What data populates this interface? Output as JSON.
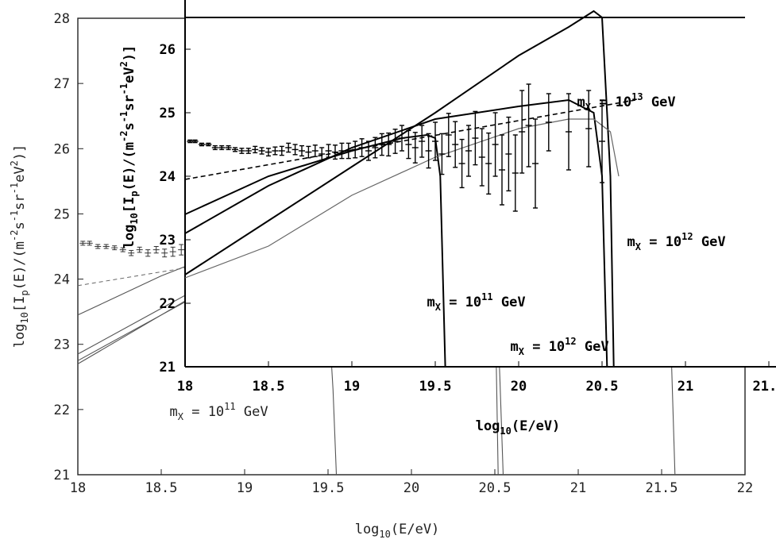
{
  "chart_data": [
    {
      "name": "outer",
      "type": "line",
      "xlabel_main": "log",
      "xlabel_sub": "10",
      "xlabel_rest": "(E/eV)",
      "ylabel_parts": {
        "a": "log",
        "a_sub": "10",
        "b": "[I",
        "b_sub": "p",
        "c": "(E)/(m",
        "c_sup": "-2",
        "d": "s",
        "d_sup": "-1",
        "e": "sr",
        "e_sup": "-1",
        "f": "eV",
        "f_sup": "2",
        "g": ")]"
      },
      "xlim": [
        18,
        22
      ],
      "ylim": [
        21,
        28
      ],
      "xticks": [
        "18",
        "18.5",
        "19",
        "19.5",
        "20",
        "20.5",
        "21",
        "21.5",
        "22"
      ],
      "yticks": [
        "21",
        "22",
        "23",
        "24",
        "25",
        "26",
        "27",
        "28"
      ],
      "annotations": [
        {
          "text": "m",
          "sub": "X",
          "rest": " = 10",
          "sup": "11",
          "unit": " GeV",
          "x": 18.55,
          "y": 21.9
        },
        {
          "text": "m",
          "sub": "X",
          "rest": " = 10",
          "sup": "12",
          "unit": " GeV",
          "x": 20.55,
          "y": 23.0
        }
      ],
      "series": [
        {
          "name": "m_X = 10^11 GeV model",
          "x": [
            18.0,
            18.5,
            19.0,
            19.2,
            19.35,
            19.45,
            19.5,
            19.53,
            19.55
          ],
          "y": [
            22.75,
            23.45,
            24.15,
            24.42,
            24.48,
            24.3,
            23.6,
            22.3,
            21.0
          ]
        },
        {
          "name": "m_X = 10^12 GeV model",
          "x": [
            18.0,
            18.5,
            19.0,
            19.5,
            19.8,
            20.1,
            20.3,
            20.42,
            20.5,
            20.53,
            20.55
          ],
          "y": [
            22.7,
            23.45,
            24.2,
            24.9,
            25.3,
            25.55,
            25.6,
            25.4,
            24.5,
            22.5,
            21.0
          ]
        },
        {
          "name": "m_X = 10^12 GeV model (b)",
          "x": [
            18.0,
            18.5,
            19.0,
            19.5,
            20.0,
            20.3,
            20.45,
            20.5,
            20.52
          ],
          "y": [
            22.85,
            23.55,
            24.25,
            24.95,
            25.6,
            25.7,
            25.6,
            24.0,
            21.0
          ]
        },
        {
          "name": "m_X = 10^13 GeV model",
          "x": [
            18.0,
            18.5,
            19.0,
            19.5,
            20.0,
            20.5,
            21.0,
            21.3,
            21.48,
            21.55,
            21.58
          ],
          "y": [
            23.45,
            24.05,
            24.55,
            25.05,
            25.55,
            25.9,
            26.1,
            26.05,
            25.5,
            23.5,
            21.0
          ]
        },
        {
          "name": "power-law fit",
          "x": [
            18.0,
            21.2
          ],
          "y": [
            23.9,
            25.25
          ]
        }
      ],
      "data_points": {
        "x": [
          18.03,
          18.07,
          18.12,
          18.17,
          18.22,
          18.27,
          18.32,
          18.37,
          18.42,
          18.47,
          18.52,
          18.57,
          18.62,
          18.67,
          18.72,
          18.77,
          18.82,
          18.87,
          18.92,
          18.97,
          19.02,
          19.07,
          19.12,
          19.17,
          19.22,
          19.27,
          19.32,
          19.37,
          19.42,
          19.47,
          19.52,
          19.57,
          19.62,
          19.67,
          19.72,
          19.77,
          19.82,
          19.87,
          19.92,
          19.97,
          20.02,
          20.1
        ],
        "y": [
          24.55,
          24.55,
          24.5,
          24.5,
          24.48,
          24.45,
          24.4,
          24.45,
          24.4,
          24.45,
          24.4,
          24.42,
          24.45,
          24.4,
          24.3,
          24.28,
          24.3,
          24.35,
          24.3,
          24.4,
          24.35,
          24.45,
          24.5,
          24.5,
          24.55,
          24.55,
          24.4,
          24.45,
          24.65,
          24.6,
          24.8,
          24.9,
          25.2,
          24.3,
          24.4,
          24.65,
          24.5,
          24.8,
          24.95,
          24.8,
          24.2,
          24.2
        ],
        "err": [
          0.03,
          0.03,
          0.03,
          0.03,
          0.03,
          0.03,
          0.04,
          0.04,
          0.05,
          0.05,
          0.06,
          0.07,
          0.08,
          0.09,
          0.09,
          0.1,
          0.12,
          0.13,
          0.14,
          0.15,
          0.16,
          0.18,
          0.2,
          0.22,
          0.25,
          0.28,
          0.3,
          0.32,
          0.35,
          0.38,
          0.4,
          0.42,
          0.45,
          0.5,
          0.55,
          0.6,
          0.65,
          0.7,
          0.75,
          0.8,
          0.9,
          0.5
        ]
      }
    },
    {
      "name": "inset",
      "type": "line",
      "xlabel_main": "log",
      "xlabel_sub": "10",
      "xlabel_rest": "(E/eV)",
      "ylabel_parts": {
        "a": "log",
        "a_sub": "10",
        "b": "[I",
        "b_sub": "p",
        "c": "(E)/(m",
        "c_sup": "-2",
        "d": "s",
        "d_sup": "-1",
        "e": "sr",
        "e_sup": "-1",
        "f": "eV",
        "f_sup": "2",
        "g": ")]"
      },
      "xlim": [
        18,
        21.5
      ],
      "ylim": [
        21,
        26.5
      ],
      "xticks": [
        "18",
        "18.5",
        "19",
        "19.5",
        "20",
        "20.5",
        "21",
        "21.5"
      ],
      "yticks": [
        "21",
        "22",
        "23",
        "24",
        "25",
        "26"
      ],
      "annotations": [
        {
          "text": "m",
          "sub": "X",
          "rest": " = 10",
          "sup": "11",
          "unit": " GeV",
          "x": 19.45,
          "y": 21.95
        },
        {
          "text": "m",
          "sub": "X",
          "rest": " = 10",
          "sup": "12",
          "unit": " GeV",
          "x": 20.65,
          "y": 22.9
        },
        {
          "text": "m",
          "sub": "X",
          "rest": " = 10",
          "sup": "12",
          "unit": " GeV",
          "x": 19.95,
          "y": 21.25
        },
        {
          "text": "m",
          "sub": "X",
          "rest": " = 10",
          "sup": "13",
          "unit": " GeV",
          "x": 20.35,
          "y": 25.1
        }
      ],
      "series": [
        {
          "name": "m_X = 10^11 GeV",
          "x": [
            18.0,
            18.5,
            19.0,
            19.3,
            19.45,
            19.5,
            19.53,
            19.55,
            19.56
          ],
          "y": [
            23.4,
            24.0,
            24.4,
            24.6,
            24.65,
            24.6,
            24.0,
            22.0,
            21.0
          ]
        },
        {
          "name": "m_X = 10^12 GeV",
          "x": [
            18.0,
            18.5,
            19.0,
            19.5,
            20.0,
            20.3,
            20.45,
            20.5,
            20.52,
            20.53
          ],
          "y": [
            23.1,
            23.85,
            24.45,
            24.9,
            25.1,
            25.2,
            25.0,
            24.0,
            22.0,
            21.0
          ]
        },
        {
          "name": "m_X = 10^12 GeV (b)",
          "x": [
            18.0,
            18.5,
            19.0,
            19.5,
            20.0,
            20.3,
            20.45,
            20.5,
            20.55,
            20.57
          ],
          "y": [
            22.45,
            23.3,
            24.15,
            25.0,
            25.9,
            26.35,
            26.6,
            26.5,
            24.0,
            21.0
          ]
        },
        {
          "name": "m_X = 10^13 GeV (gray)",
          "x": [
            18.0,
            18.5,
            19.0,
            19.5,
            20.0,
            20.3,
            20.45,
            20.55,
            20.6
          ],
          "y": [
            22.4,
            22.9,
            23.7,
            24.3,
            24.75,
            24.9,
            24.9,
            24.7,
            24.0
          ]
        },
        {
          "name": "power-law fit",
          "x": [
            18.0,
            20.7
          ],
          "y": [
            23.95,
            25.2
          ]
        }
      ],
      "data_points": {
        "x": [
          18.03,
          18.06,
          18.1,
          18.14,
          18.18,
          18.22,
          18.26,
          18.3,
          18.34,
          18.38,
          18.42,
          18.46,
          18.5,
          18.54,
          18.58,
          18.62,
          18.66,
          18.7,
          18.74,
          18.78,
          18.82,
          18.86,
          18.9,
          18.94,
          18.98,
          19.02,
          19.06,
          19.1,
          19.14,
          19.18,
          19.22,
          19.26,
          19.3,
          19.34,
          19.38,
          19.42,
          19.46,
          19.5,
          19.54,
          19.58,
          19.62,
          19.66,
          19.7,
          19.74,
          19.78,
          19.82,
          19.86,
          19.9,
          19.94,
          19.98,
          20.02,
          20.06,
          20.1,
          20.18,
          20.3,
          20.42,
          20.5
        ],
        "y": [
          24.55,
          24.55,
          24.5,
          24.5,
          24.45,
          24.45,
          24.45,
          24.42,
          24.4,
          24.4,
          24.42,
          24.4,
          24.38,
          24.4,
          24.4,
          24.45,
          24.42,
          24.4,
          24.38,
          24.4,
          24.35,
          24.4,
          24.38,
          24.4,
          24.4,
          24.42,
          24.45,
          24.4,
          24.45,
          24.5,
          24.5,
          24.55,
          24.6,
          24.5,
          24.45,
          24.55,
          24.4,
          24.55,
          24.35,
          24.65,
          24.5,
          24.2,
          24.4,
          24.6,
          24.3,
          24.2,
          24.5,
          24.1,
          24.35,
          24.05,
          24.7,
          24.8,
          24.2,
          24.85,
          24.7,
          24.75,
          24.55
        ],
        "err": [
          0.02,
          0.02,
          0.02,
          0.02,
          0.03,
          0.03,
          0.03,
          0.03,
          0.04,
          0.04,
          0.05,
          0.05,
          0.06,
          0.06,
          0.07,
          0.07,
          0.08,
          0.08,
          0.09,
          0.09,
          0.1,
          0.1,
          0.11,
          0.12,
          0.12,
          0.13,
          0.14,
          0.15,
          0.16,
          0.17,
          0.18,
          0.19,
          0.2,
          0.22,
          0.24,
          0.25,
          0.27,
          0.3,
          0.32,
          0.34,
          0.36,
          0.38,
          0.4,
          0.42,
          0.45,
          0.48,
          0.5,
          0.55,
          0.58,
          0.6,
          0.65,
          0.65,
          0.7,
          0.45,
          0.6,
          0.6,
          0.65
        ]
      }
    }
  ]
}
